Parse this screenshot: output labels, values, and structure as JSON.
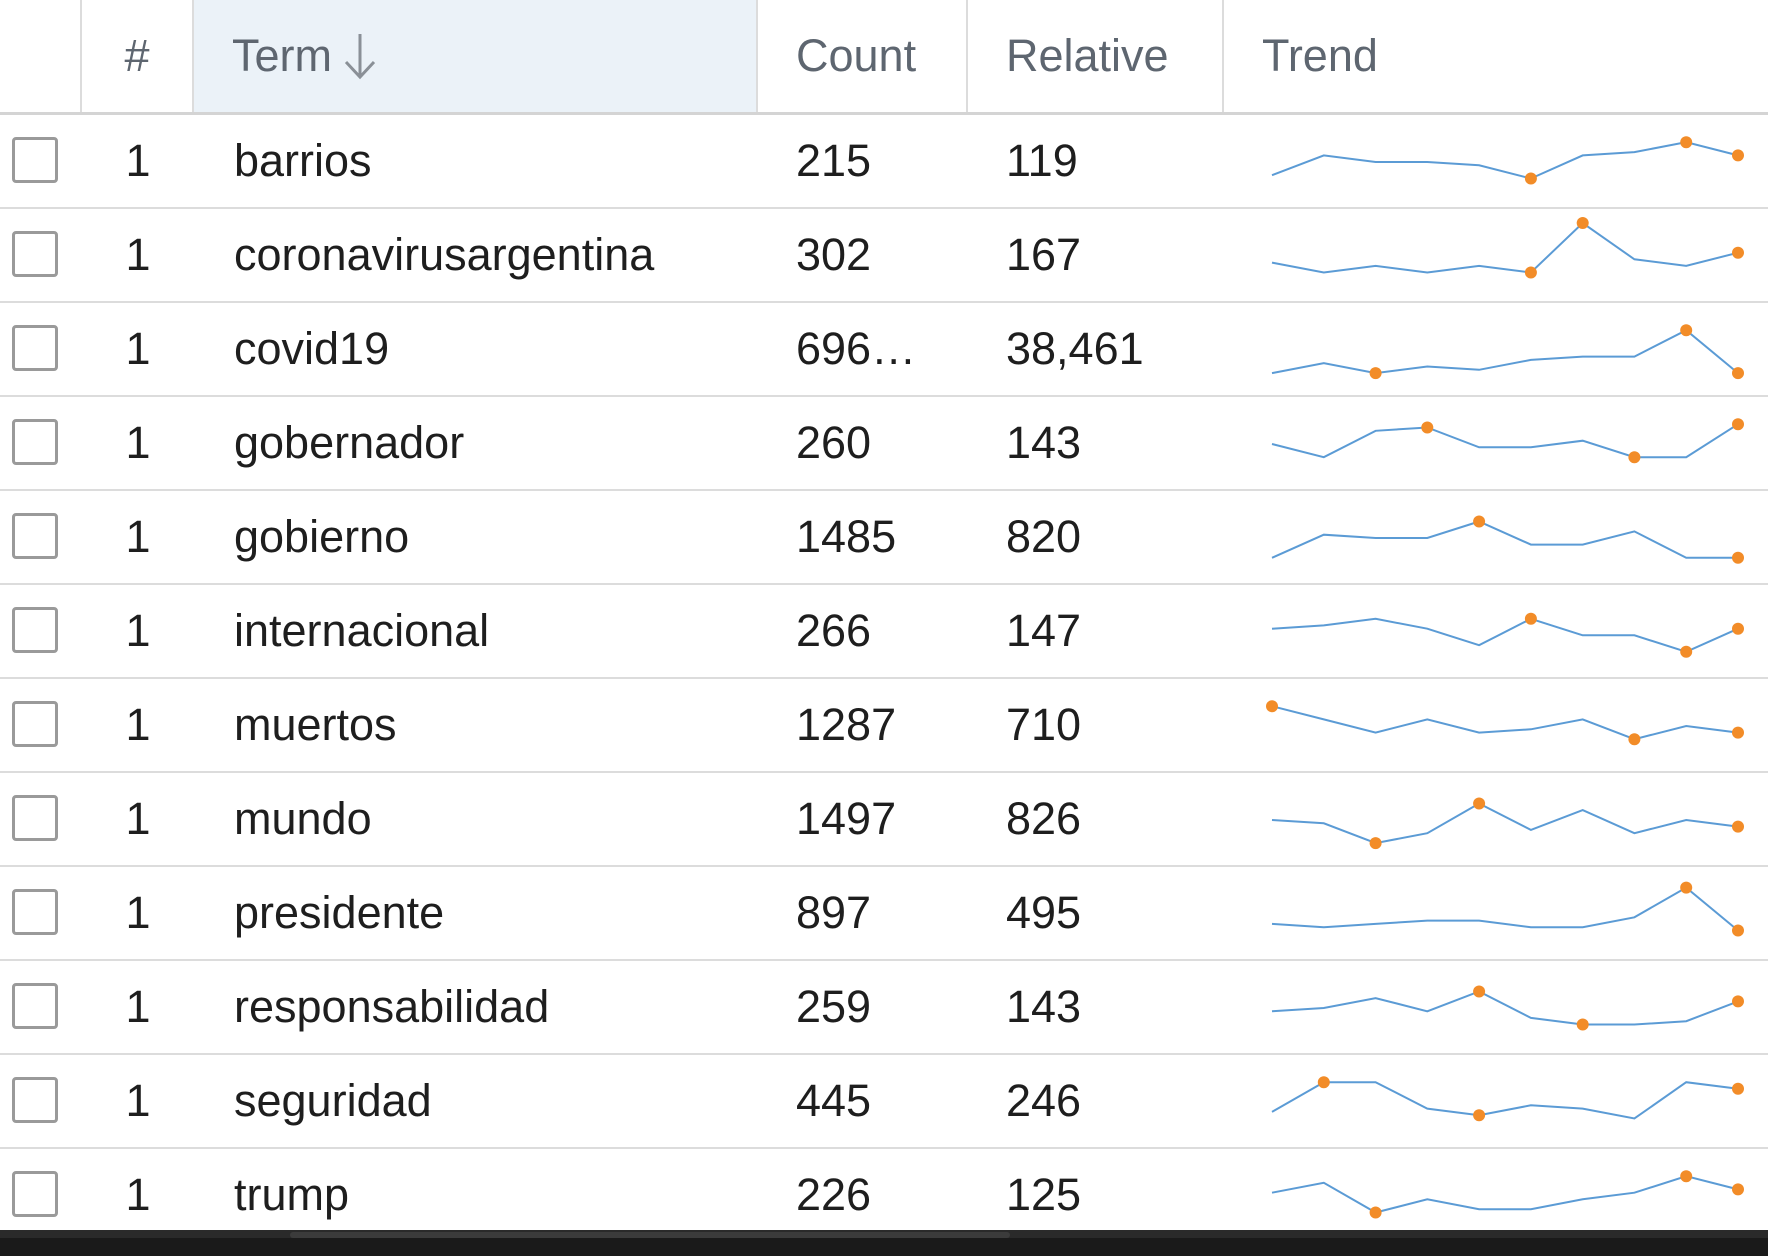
{
  "header": {
    "rank": "#",
    "term": "Term",
    "count": "Count",
    "relative": "Relative",
    "trend": "Trend"
  },
  "colors": {
    "line": "#5b9bd5",
    "marker": "#f28c28"
  },
  "rows": [
    {
      "rank": "1",
      "term": "barrios",
      "count": "215",
      "relative": "119",
      "trend": [
        3,
        6,
        5,
        5,
        4.5,
        2.5,
        6,
        6.5,
        8,
        6
      ],
      "markers": [
        5,
        8,
        9
      ]
    },
    {
      "rank": "1",
      "term": "coronavirusargentina",
      "count": "302",
      "relative": "167",
      "trend": [
        4,
        2.5,
        3.5,
        2.5,
        3.5,
        2.5,
        10,
        4.5,
        3.5,
        5.5
      ],
      "markers": [
        5,
        6,
        9
      ]
    },
    {
      "rank": "1",
      "term": "covid19",
      "count": "696…",
      "relative": "38,461",
      "trend": [
        1.5,
        3,
        1.5,
        2.5,
        2,
        3.5,
        4,
        4,
        8,
        1.5
      ],
      "markers": [
        2,
        8,
        9
      ]
    },
    {
      "rank": "1",
      "term": "gobernador",
      "count": "260",
      "relative": "143",
      "trend": [
        5,
        3,
        7,
        7.5,
        4.5,
        4.5,
        5.5,
        3,
        3,
        8
      ],
      "markers": [
        3,
        7,
        9
      ]
    },
    {
      "rank": "1",
      "term": "gobierno",
      "count": "1485",
      "relative": "820",
      "trend": [
        2,
        5.5,
        5,
        5,
        7.5,
        4,
        4,
        6,
        2,
        2
      ],
      "markers": [
        4,
        9
      ]
    },
    {
      "rank": "1",
      "term": "internacional",
      "count": "266",
      "relative": "147",
      "trend": [
        5.5,
        6,
        7,
        5.5,
        3,
        7,
        4.5,
        4.5,
        2,
        5.5
      ],
      "markers": [
        5,
        8,
        9
      ]
    },
    {
      "rank": "1",
      "term": "muertos",
      "count": "1287",
      "relative": "710",
      "trend": [
        8,
        6,
        4,
        6,
        4,
        4.5,
        6,
        3,
        5,
        4
      ],
      "markers": [
        0,
        7,
        9
      ]
    },
    {
      "rank": "1",
      "term": "mundo",
      "count": "1497",
      "relative": "826",
      "trend": [
        5,
        4.5,
        1.5,
        3,
        7.5,
        3.5,
        6.5,
        3,
        5,
        4
      ],
      "markers": [
        2,
        4,
        9
      ]
    },
    {
      "rank": "1",
      "term": "presidente",
      "count": "897",
      "relative": "495",
      "trend": [
        3.5,
        3,
        3.5,
        4,
        4,
        3,
        3,
        4.5,
        9,
        2.5
      ],
      "markers": [
        8,
        9
      ]
    },
    {
      "rank": "1",
      "term": "responsabilidad",
      "count": "259",
      "relative": "143",
      "trend": [
        4.5,
        5,
        6.5,
        4.5,
        7.5,
        3.5,
        2.5,
        2.5,
        3,
        6
      ],
      "markers": [
        4,
        6,
        9
      ]
    },
    {
      "rank": "1",
      "term": "seguridad",
      "count": "445",
      "relative": "246",
      "trend": [
        3.5,
        8,
        8,
        4,
        3,
        4.5,
        4,
        2.5,
        8,
        7
      ],
      "markers": [
        1,
        4,
        9
      ]
    },
    {
      "rank": "1",
      "term": "trump",
      "count": "226",
      "relative": "125",
      "trend": [
        5.5,
        7,
        2.5,
        4.5,
        3,
        3,
        4.5,
        5.5,
        8,
        6
      ],
      "markers": [
        2,
        8,
        9
      ]
    }
  ]
}
